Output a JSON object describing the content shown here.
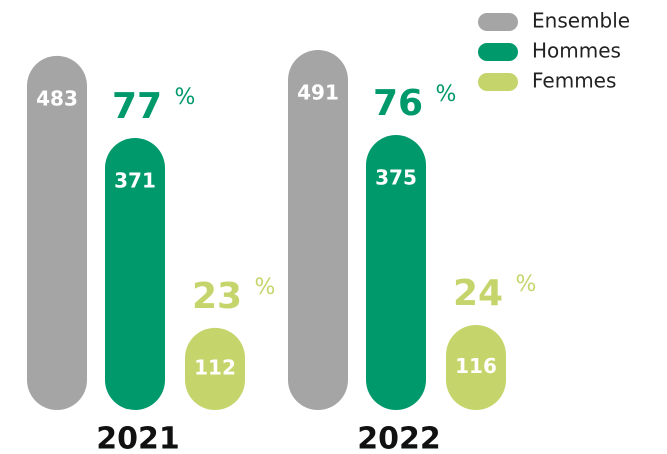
{
  "chart_data": {
    "type": "bar",
    "categories": [
      "2021",
      "2022"
    ],
    "series": [
      {
        "name": "Ensemble",
        "color": "#a5a5a5",
        "values": [
          483,
          491
        ]
      },
      {
        "name": "Hommes",
        "color": "#00996c",
        "values": [
          371,
          375
        ],
        "shares": [
          77,
          76
        ],
        "share_unit": "%"
      },
      {
        "name": "Femmes",
        "color": "#c6d56b",
        "values": [
          112,
          116
        ],
        "shares": [
          23,
          24
        ],
        "share_unit": "%"
      }
    ],
    "legend": "top-right"
  }
}
